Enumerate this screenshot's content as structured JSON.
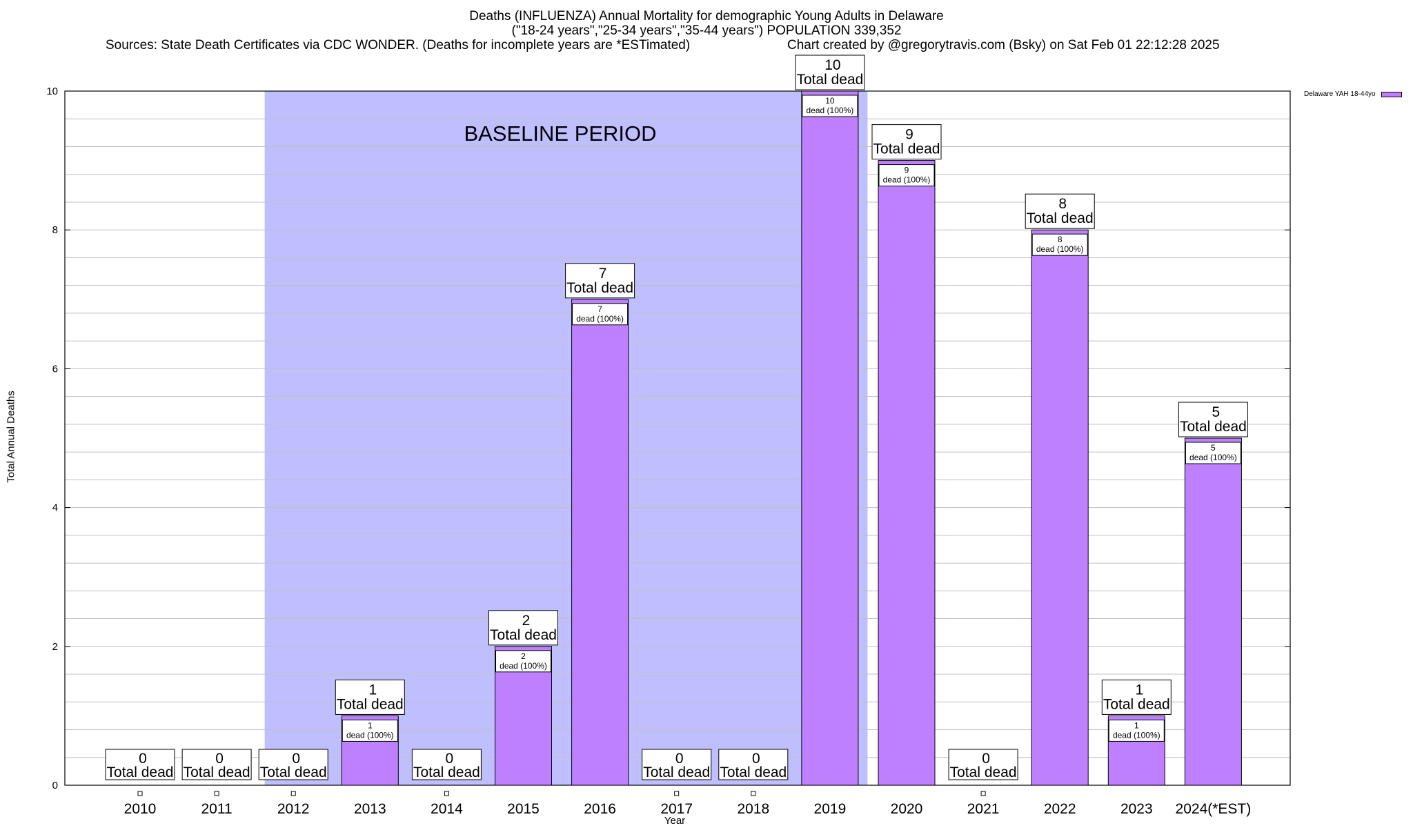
{
  "chart_data": {
    "type": "bar",
    "title": "Deaths (INFLUENZA) Annual Mortality for demographic Young Adults in Delaware",
    "subtitle": "(\"18-24 years\",\"25-34 years\",\"35-44 years\") POPULATION 339,352",
    "source_text": "Sources: State Death Certificates via CDC WONDER. (Deaths for incomplete years are *ESTimated)",
    "credit_text": "Chart created by @gregorytravis.com (Bsky) on Sat Feb 01 22:12:28 2025",
    "xlabel": "Year",
    "ylabel": "Total Annual Deaths",
    "ylim": [
      0,
      10
    ],
    "yticks": [
      0,
      2,
      4,
      6,
      8,
      10
    ],
    "categories": [
      "2010",
      "2011",
      "2012",
      "2013",
      "2014",
      "2015",
      "2016",
      "2017",
      "2018",
      "2019",
      "2020",
      "2021",
      "2022",
      "2023",
      "2024(*EST)"
    ],
    "series": [
      {
        "name": "Delaware YAH 18-44yo",
        "values": [
          0,
          0,
          0,
          1,
          0,
          2,
          7,
          0,
          0,
          10,
          9,
          0,
          8,
          1,
          5
        ]
      }
    ],
    "total_label": "Total dead",
    "inner_label": "dead (100%)",
    "baseline_label": "BASELINE PERIOD",
    "baseline_range": [
      "2012",
      "2019"
    ],
    "colors": {
      "bar": "#bf80ff",
      "baseline_shade": "#bfbfff",
      "grid": "#c0c0c0",
      "axis": "#000000"
    }
  }
}
